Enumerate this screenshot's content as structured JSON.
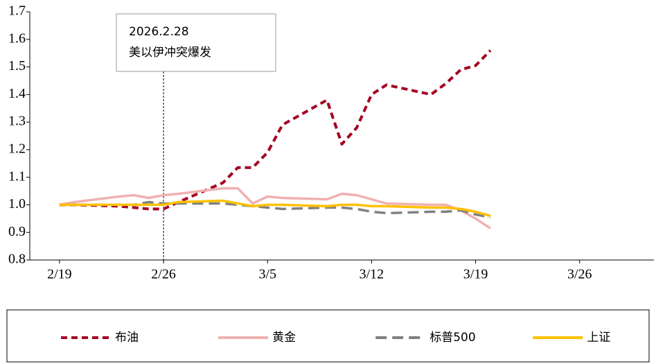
{
  "chart_data": {
    "type": "line",
    "x": [
      "2/19",
      "2/20",
      "2/23",
      "2/24",
      "2/25",
      "2/26",
      "2/27",
      "3/2",
      "3/3",
      "3/4",
      "3/5",
      "3/6",
      "3/9",
      "3/10",
      "3/11",
      "3/12",
      "3/13",
      "3/16",
      "3/17",
      "3/18",
      "3/19",
      "3/20"
    ],
    "xlim": [
      "2/17",
      "3/31"
    ],
    "xticks": [
      "2/19",
      "2/26",
      "3/5",
      "3/12",
      "3/19",
      "3/26"
    ],
    "ylim": [
      0.8,
      1.7
    ],
    "yticks": [
      0.8,
      0.9,
      {
        "value": 1,
        "label": "1.0"
      },
      1.1,
      1.2,
      1.3,
      1.4,
      1.5,
      1.6,
      1.7
    ],
    "series": [
      {
        "name": "布油",
        "color": "#a50021",
        "dash": true,
        "values": [
          1.0,
          1.0,
          0.995,
          0.99,
          0.985,
          0.985,
          1.01,
          1.08,
          1.135,
          1.135,
          1.19,
          1.29,
          1.38,
          1.22,
          1.28,
          1.4,
          1.435,
          1.4,
          1.44,
          1.49,
          1.505,
          1.56
        ]
      },
      {
        "name": "黄金",
        "color": "#f0b0b0",
        "dash": false,
        "values": [
          1.0,
          1.01,
          1.03,
          1.035,
          1.025,
          1.035,
          1.04,
          1.06,
          1.06,
          1.005,
          1.03,
          1.025,
          1.02,
          1.04,
          1.035,
          1.02,
          1.005,
          1.0,
          1.0,
          0.98,
          0.95,
          0.915
        ]
      },
      {
        "name": "标普500",
        "color": "#808080",
        "dash": true,
        "values": [
          1.0,
          1.0,
          1.0,
          1.0,
          1.01,
          1.005,
          1.005,
          1.005,
          1.0,
          0.995,
          0.99,
          0.985,
          0.99,
          0.99,
          0.985,
          0.975,
          0.97,
          0.975,
          0.975,
          0.98,
          0.965,
          0.955
        ]
      },
      {
        "name": "上证",
        "color": "#ffc000",
        "dash": false,
        "values": [
          1.0,
          1.0,
          1.0,
          1.0,
          1.0,
          1.0,
          1.01,
          1.015,
          1.005,
          0.995,
          1.0,
          1.0,
          0.995,
          1.0,
          1.0,
          0.995,
          0.995,
          0.99,
          0.99,
          0.985,
          0.975,
          0.96
        ]
      }
    ],
    "annotation": {
      "x": "2/26",
      "lines": [
        "2026.2.28",
        "美以伊冲突爆发"
      ]
    }
  }
}
